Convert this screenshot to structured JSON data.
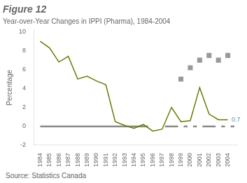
{
  "chart_data": {
    "type": "line",
    "title": "Figure 12",
    "subtitle": "Year-over-Year Changes in IPPI (Pharma), 1984-2004",
    "source": "Source: Statistics Canada",
    "y_label": "Percentage",
    "x": [
      1984,
      1985,
      1986,
      1987,
      1988,
      1989,
      1990,
      1991,
      1992,
      1993,
      1994,
      1995,
      1996,
      1997,
      1998,
      1999,
      2000,
      2001,
      2002,
      2003,
      2004
    ],
    "series": [
      {
        "color": "#6b7900",
        "values": [
          9.0,
          8.3,
          6.8,
          7.4,
          5.0,
          5.3,
          4.8,
          4.4,
          0.5,
          0.1,
          -0.2,
          0.2,
          -0.5,
          -0.3,
          2.0,
          0.5,
          0.6,
          4.1,
          1.3,
          0.7,
          0.7
        ]
      },
      {
        "type": "scatter",
        "marker": "square",
        "color": "#999999",
        "x": [
          1999,
          2000,
          2001,
          2002,
          2003,
          2004
        ],
        "values": [
          5.0,
          6.2,
          7.0,
          7.5,
          7.0,
          7.5
        ]
      }
    ],
    "zero_line": {
      "y": 0,
      "color": "#888888",
      "segments": [
        [
          1984.0,
          1995.5
        ],
        [
          1997.3,
          1998.7
        ],
        [
          1999.3,
          1999.7
        ],
        [
          2000.3,
          2000.7
        ],
        [
          2001.3,
          2002.7
        ],
        [
          2003.3,
          2003.7
        ],
        [
          2004.3,
          2004.7
        ]
      ]
    },
    "annotations": [
      {
        "x": 2004.4,
        "y": 0.7,
        "text": "0.7",
        "color": "#5b8fa8"
      }
    ],
    "xlim": [
      1983.3,
      2005.0
    ],
    "xticks": [
      1984,
      1985,
      1986,
      1987,
      1988,
      1989,
      1990,
      1991,
      1992,
      1993,
      1994,
      1995,
      1996,
      1997,
      1998,
      1999,
      2000,
      2001,
      2002,
      2003,
      2004
    ],
    "ylim": [
      -2,
      10.2
    ],
    "yticks": [
      -2,
      0,
      2,
      4,
      6,
      8,
      10
    ],
    "grid": false
  }
}
